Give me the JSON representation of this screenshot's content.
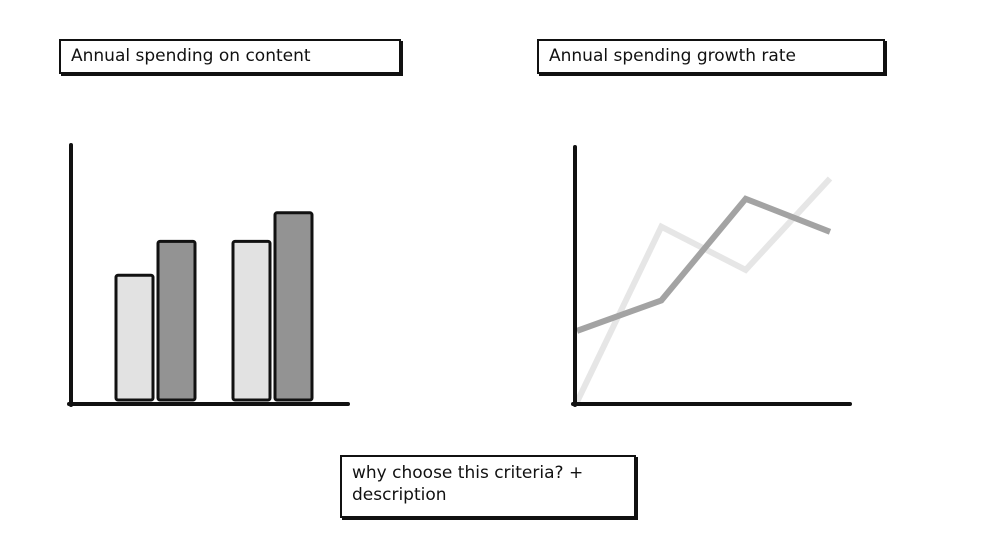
{
  "labels": {
    "spending_title": "Annual spending on content",
    "growth_title": "Annual spending growth rate",
    "criteria_line1": "why choose this criteria? +",
    "criteria_line2": "description"
  },
  "colors": {
    "axis": "#111111",
    "bar_light": "#e2e2e2",
    "bar_dark": "#939393",
    "line_light": "#e6e6e6",
    "line_dark": "#a3a3a3"
  },
  "chart_data": [
    {
      "type": "bar",
      "title": "Annual spending on content",
      "categories": [
        "",
        ""
      ],
      "series": [
        {
          "values": [
            48,
            61
          ]
        },
        {
          "values": [
            61,
            72
          ]
        }
      ],
      "ylim": [
        0,
        100
      ],
      "grid": false
    },
    {
      "type": "line",
      "title": "Annual spending growth rate",
      "x": [
        0,
        1,
        2,
        3
      ],
      "series": [
        {
          "values": [
            0,
            69,
            52,
            88
          ]
        },
        {
          "values": [
            28,
            40,
            80,
            67
          ]
        }
      ],
      "ylim": [
        0,
        100
      ],
      "grid": false
    }
  ]
}
